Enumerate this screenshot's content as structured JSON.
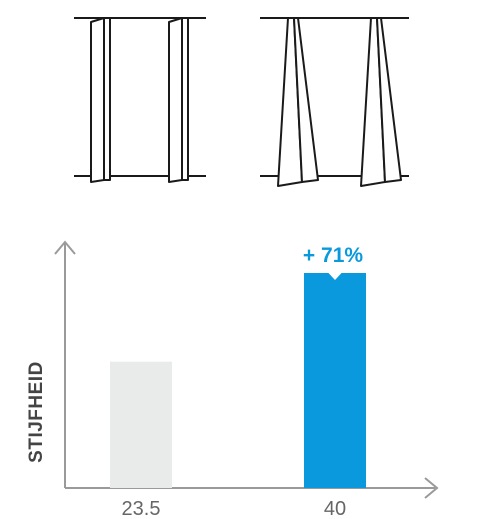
{
  "colors": {
    "axis": "#9A9A9A",
    "line_art": "#1A1A1A",
    "bar_gray": "#E9EBEA",
    "bar_blue": "#0A99DC",
    "annotation": "#0A99DC"
  },
  "chart_data": {
    "type": "bar",
    "title": "",
    "xlabel": "",
    "ylabel": "STIJFHEID",
    "categories": [
      "23.5",
      "40"
    ],
    "values": [
      23.5,
      40
    ],
    "bar_colors": [
      "#E9EBEA",
      "#0A99DC"
    ],
    "ylim": [
      0,
      40
    ],
    "grid": false,
    "annotations": [
      {
        "category": "40",
        "text": "+ 71%"
      }
    ]
  }
}
